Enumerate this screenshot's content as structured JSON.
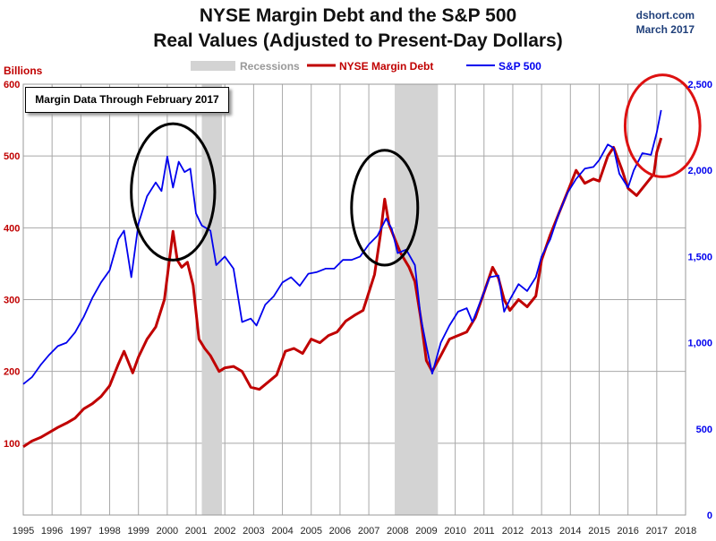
{
  "title": "NYSE Margin Debt and the S&P 500",
  "subtitle": "Real Values (Adjusted to Present-Day Dollars)",
  "credit": {
    "source": "dshort.com",
    "date": "March 2017"
  },
  "y_left_label": "Billions",
  "note": "Margin Data Through February 2017",
  "colors": {
    "margin_debt": "#c00000",
    "sp500": "#0000ee",
    "recession": "#d3d3d3",
    "highlight_black": "#000000",
    "highlight_red": "#dd1111"
  },
  "chart_data": {
    "type": "line",
    "title": "NYSE Margin Debt and the S&P 500",
    "subtitle": "Real Values (Adjusted to Present-Day Dollars)",
    "xlabel": "",
    "x_range": [
      1995,
      2018
    ],
    "x_ticks": [
      "1995",
      "1996",
      "1997",
      "1998",
      "1999",
      "2000",
      "2001",
      "2002",
      "2003",
      "2004",
      "2005",
      "2006",
      "2007",
      "2008",
      "2009",
      "2010",
      "2011",
      "2012",
      "2013",
      "2014",
      "2015",
      "2016",
      "2017",
      "2018"
    ],
    "y_left": {
      "label": "Billions",
      "range": [
        0,
        600
      ],
      "ticks": [
        "100",
        "200",
        "300",
        "400",
        "500",
        "600"
      ]
    },
    "y_right": {
      "label": "",
      "range": [
        0,
        2500
      ],
      "ticks": [
        "0",
        "500",
        "1,000",
        "1,500",
        "2,000",
        "2,500"
      ]
    },
    "grid": true,
    "legend_position": "top-center",
    "legend": [
      {
        "name": "Recessions",
        "kind": "band"
      },
      {
        "name": "NYSE Margin Debt",
        "kind": "line"
      },
      {
        "name": "S&P 500",
        "kind": "line"
      }
    ],
    "recessions": [
      [
        2001.2,
        2001.9
      ],
      [
        2007.9,
        2009.4
      ]
    ],
    "series": [
      {
        "name": "NYSE Margin Debt",
        "axis": "left",
        "points": [
          [
            1995.0,
            95
          ],
          [
            1995.3,
            103
          ],
          [
            1995.6,
            108
          ],
          [
            1995.9,
            115
          ],
          [
            1996.2,
            122
          ],
          [
            1996.5,
            128
          ],
          [
            1996.8,
            135
          ],
          [
            1997.1,
            148
          ],
          [
            1997.4,
            155
          ],
          [
            1997.7,
            165
          ],
          [
            1998.0,
            180
          ],
          [
            1998.3,
            210
          ],
          [
            1998.5,
            228
          ],
          [
            1998.8,
            198
          ],
          [
            1999.0,
            220
          ],
          [
            1999.3,
            245
          ],
          [
            1999.6,
            262
          ],
          [
            1999.9,
            300
          ],
          [
            2000.2,
            395
          ],
          [
            2000.35,
            355
          ],
          [
            2000.5,
            345
          ],
          [
            2000.7,
            352
          ],
          [
            2000.9,
            320
          ],
          [
            2001.1,
            245
          ],
          [
            2001.3,
            232
          ],
          [
            2001.5,
            222
          ],
          [
            2001.8,
            200
          ],
          [
            2002.0,
            205
          ],
          [
            2002.3,
            207
          ],
          [
            2002.6,
            200
          ],
          [
            2002.9,
            178
          ],
          [
            2003.2,
            175
          ],
          [
            2003.5,
            185
          ],
          [
            2003.8,
            195
          ],
          [
            2004.1,
            228
          ],
          [
            2004.4,
            232
          ],
          [
            2004.7,
            225
          ],
          [
            2005.0,
            245
          ],
          [
            2005.3,
            240
          ],
          [
            2005.6,
            250
          ],
          [
            2005.9,
            255
          ],
          [
            2006.2,
            270
          ],
          [
            2006.5,
            278
          ],
          [
            2006.8,
            285
          ],
          [
            2007.0,
            310
          ],
          [
            2007.2,
            335
          ],
          [
            2007.4,
            390
          ],
          [
            2007.55,
            440
          ],
          [
            2007.7,
            405
          ],
          [
            2007.9,
            385
          ],
          [
            2008.1,
            365
          ],
          [
            2008.4,
            345
          ],
          [
            2008.6,
            325
          ],
          [
            2008.8,
            275
          ],
          [
            2009.0,
            215
          ],
          [
            2009.2,
            200
          ],
          [
            2009.5,
            222
          ],
          [
            2009.8,
            245
          ],
          [
            2010.1,
            250
          ],
          [
            2010.4,
            255
          ],
          [
            2010.7,
            275
          ],
          [
            2011.0,
            310
          ],
          [
            2011.3,
            345
          ],
          [
            2011.5,
            330
          ],
          [
            2011.7,
            300
          ],
          [
            2011.9,
            285
          ],
          [
            2012.2,
            300
          ],
          [
            2012.5,
            290
          ],
          [
            2012.8,
            305
          ],
          [
            2013.0,
            355
          ],
          [
            2013.3,
            390
          ],
          [
            2013.6,
            420
          ],
          [
            2013.9,
            450
          ],
          [
            2014.2,
            480
          ],
          [
            2014.5,
            462
          ],
          [
            2014.8,
            468
          ],
          [
            2015.0,
            465
          ],
          [
            2015.3,
            500
          ],
          [
            2015.5,
            512
          ],
          [
            2015.8,
            480
          ],
          [
            2016.0,
            455
          ],
          [
            2016.3,
            445
          ],
          [
            2016.6,
            460
          ],
          [
            2016.9,
            475
          ],
          [
            2017.0,
            505
          ],
          [
            2017.15,
            525
          ]
        ]
      },
      {
        "name": "S&P 500",
        "axis": "right",
        "points": [
          [
            1995.0,
            760
          ],
          [
            1995.3,
            800
          ],
          [
            1995.6,
            870
          ],
          [
            1995.9,
            930
          ],
          [
            1996.2,
            980
          ],
          [
            1996.5,
            1000
          ],
          [
            1996.8,
            1060
          ],
          [
            1997.1,
            1150
          ],
          [
            1997.4,
            1260
          ],
          [
            1997.7,
            1350
          ],
          [
            1998.0,
            1420
          ],
          [
            1998.3,
            1600
          ],
          [
            1998.5,
            1650
          ],
          [
            1998.75,
            1380
          ],
          [
            1999.0,
            1690
          ],
          [
            1999.3,
            1850
          ],
          [
            1999.6,
            1930
          ],
          [
            1999.8,
            1880
          ],
          [
            2000.0,
            2080
          ],
          [
            2000.2,
            1900
          ],
          [
            2000.4,
            2050
          ],
          [
            2000.6,
            1990
          ],
          [
            2000.8,
            2010
          ],
          [
            2001.0,
            1750
          ],
          [
            2001.2,
            1680
          ],
          [
            2001.5,
            1650
          ],
          [
            2001.7,
            1450
          ],
          [
            2002.0,
            1500
          ],
          [
            2002.3,
            1430
          ],
          [
            2002.6,
            1120
          ],
          [
            2002.9,
            1140
          ],
          [
            2003.1,
            1100
          ],
          [
            2003.4,
            1220
          ],
          [
            2003.7,
            1270
          ],
          [
            2004.0,
            1350
          ],
          [
            2004.3,
            1380
          ],
          [
            2004.6,
            1330
          ],
          [
            2004.9,
            1400
          ],
          [
            2005.2,
            1410
          ],
          [
            2005.5,
            1430
          ],
          [
            2005.8,
            1430
          ],
          [
            2006.1,
            1480
          ],
          [
            2006.4,
            1480
          ],
          [
            2006.7,
            1500
          ],
          [
            2007.0,
            1570
          ],
          [
            2007.3,
            1620
          ],
          [
            2007.6,
            1720
          ],
          [
            2007.8,
            1660
          ],
          [
            2008.0,
            1520
          ],
          [
            2008.3,
            1540
          ],
          [
            2008.6,
            1450
          ],
          [
            2008.8,
            1150
          ],
          [
            2009.0,
            980
          ],
          [
            2009.2,
            820
          ],
          [
            2009.5,
            1000
          ],
          [
            2009.8,
            1100
          ],
          [
            2010.1,
            1180
          ],
          [
            2010.4,
            1200
          ],
          [
            2010.6,
            1120
          ],
          [
            2010.9,
            1250
          ],
          [
            2011.2,
            1380
          ],
          [
            2011.5,
            1390
          ],
          [
            2011.7,
            1180
          ],
          [
            2011.9,
            1250
          ],
          [
            2012.2,
            1340
          ],
          [
            2012.5,
            1300
          ],
          [
            2012.8,
            1380
          ],
          [
            2013.0,
            1500
          ],
          [
            2013.3,
            1600
          ],
          [
            2013.6,
            1750
          ],
          [
            2013.9,
            1870
          ],
          [
            2014.2,
            1950
          ],
          [
            2014.5,
            2010
          ],
          [
            2014.8,
            2020
          ],
          [
            2015.0,
            2060
          ],
          [
            2015.3,
            2150
          ],
          [
            2015.5,
            2130
          ],
          [
            2015.7,
            1980
          ],
          [
            2016.0,
            1900
          ],
          [
            2016.2,
            2000
          ],
          [
            2016.5,
            2100
          ],
          [
            2016.8,
            2090
          ],
          [
            2017.0,
            2220
          ],
          [
            2017.15,
            2350
          ]
        ]
      }
    ],
    "annotations": [
      {
        "type": "ellipse",
        "color": "black",
        "around": "2000 peak"
      },
      {
        "type": "ellipse",
        "color": "black",
        "around": "2007 peak"
      },
      {
        "type": "ellipse",
        "color": "red",
        "around": "2017 latest data"
      }
    ]
  }
}
